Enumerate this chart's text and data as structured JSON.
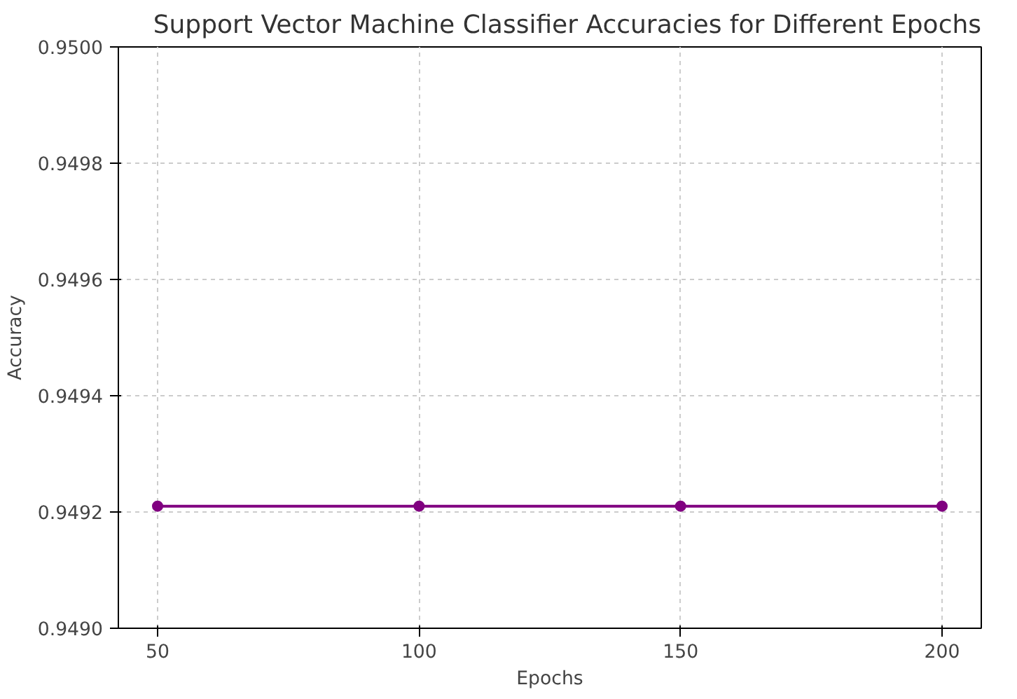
{
  "chart_data": {
    "type": "line",
    "title": "Support Vector Machine Classifier Accuracies for Different Epochs",
    "xlabel": "Epochs",
    "ylabel": "Accuracy",
    "x": [
      50,
      100,
      150,
      200
    ],
    "series": [
      {
        "color": "#800080",
        "values": [
          0.94921,
          0.94921,
          0.94921,
          0.94921
        ]
      }
    ],
    "xlim": [
      42.5,
      207.5
    ],
    "xticks": [
      50,
      100,
      150,
      200
    ],
    "ylim": [
      0.949,
      0.95
    ],
    "yticks": [
      {
        "value": 0.949,
        "label": "0.9490"
      },
      {
        "value": 0.9492,
        "label": "0.9492"
      },
      {
        "value": 0.9494,
        "label": "0.9494"
      },
      {
        "value": 0.9496,
        "label": "0.9496"
      },
      {
        "value": 0.9498,
        "label": "0.9498"
      },
      {
        "value": 0.95,
        "label": "0.9500"
      }
    ],
    "grid": true,
    "marker": "circle",
    "line_style": "solid"
  }
}
